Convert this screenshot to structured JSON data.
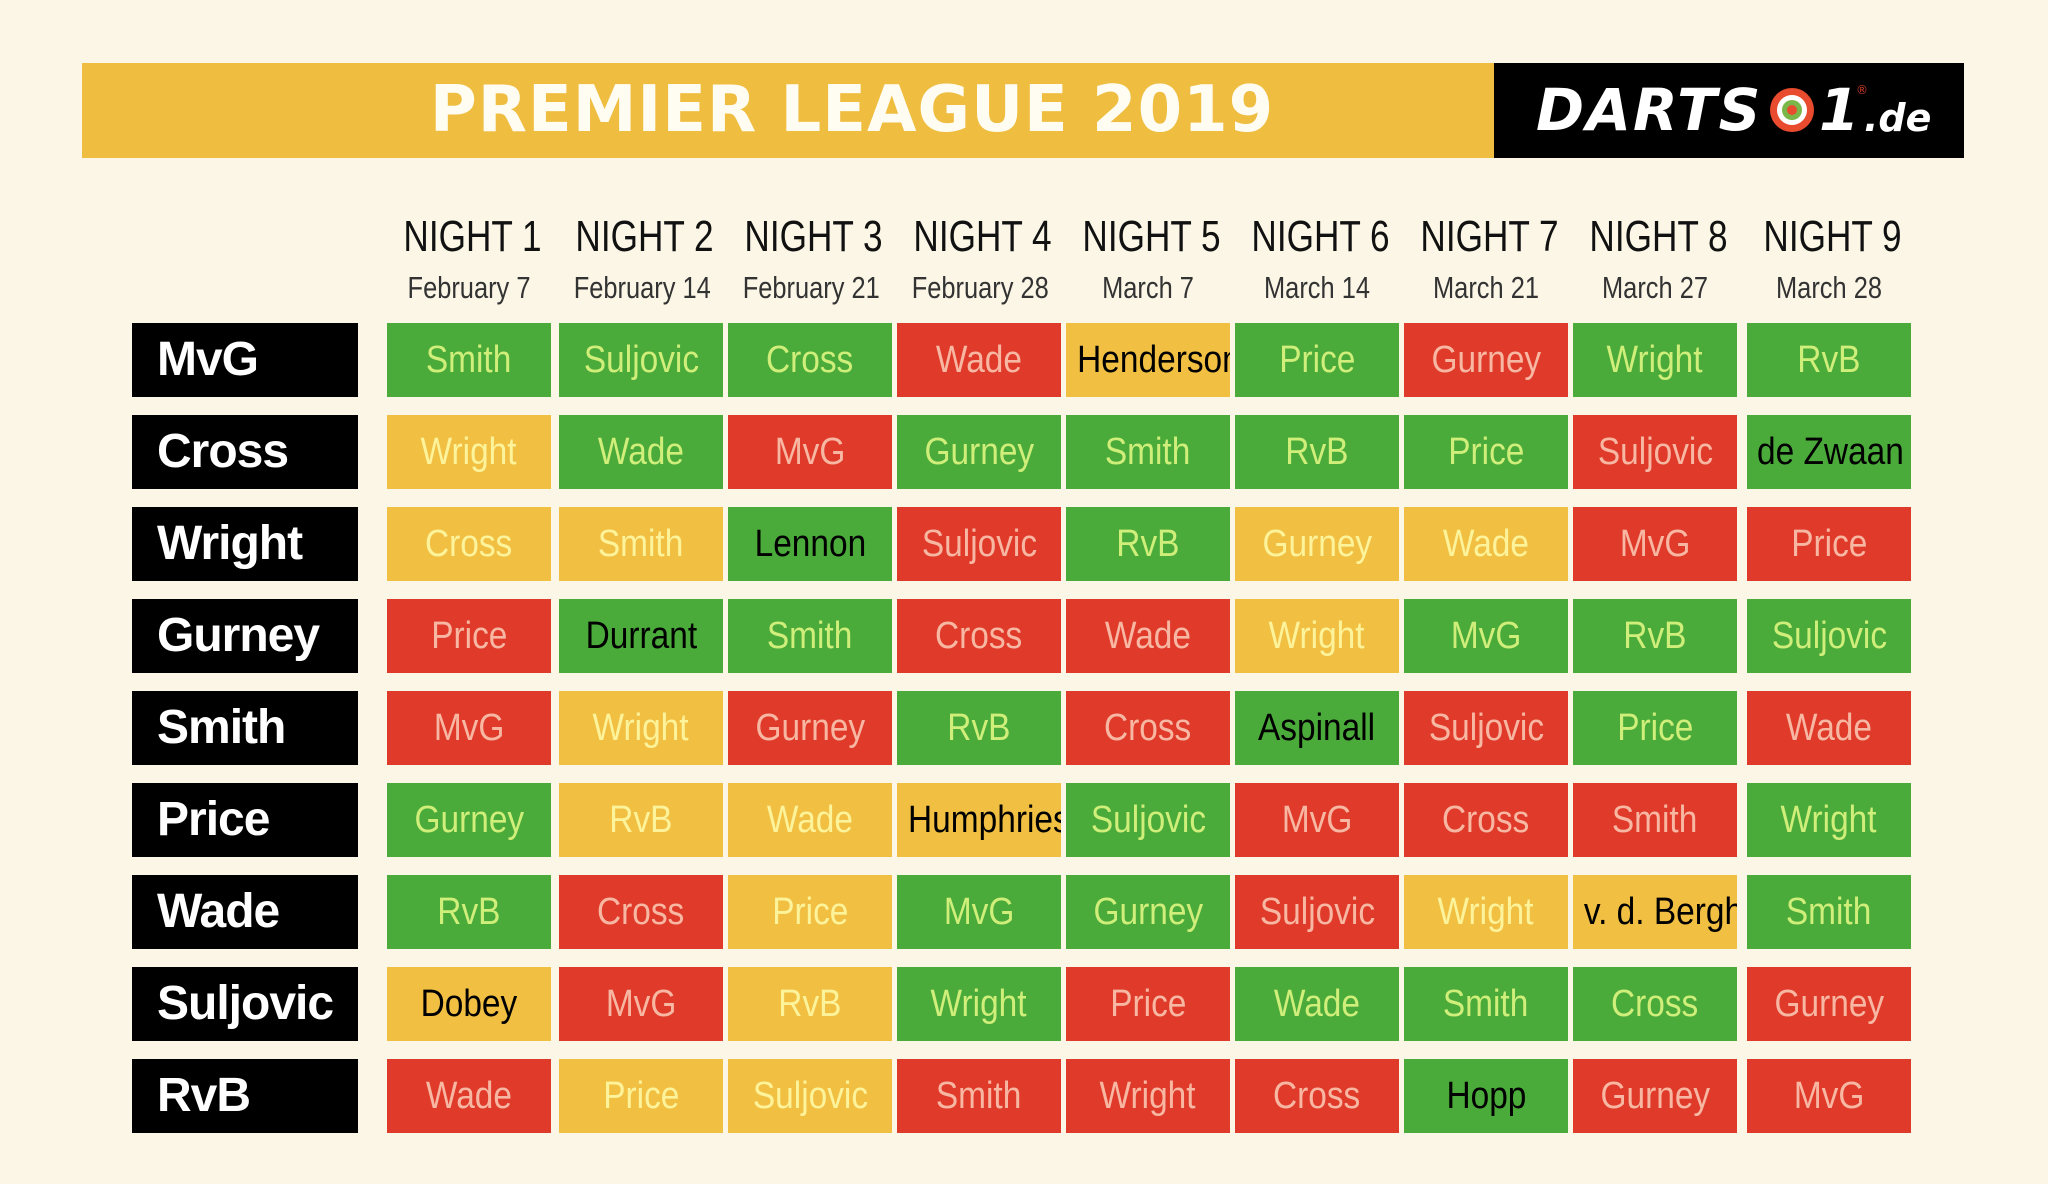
{
  "title": "PREMIER LEAGUE 2019",
  "logo": {
    "text": "DARTS",
    "one": "1",
    "tld": ".de",
    "reg": "®"
  },
  "colors": {
    "background": "#fbf6e6",
    "banner": "#efbd40",
    "green": "#4aaa3a",
    "yellow": "#f1bf42",
    "red": "#df3a2a",
    "player_bg": "#000000"
  },
  "nights": [
    {
      "label": "NIGHT 1",
      "date": "February 7"
    },
    {
      "label": "NIGHT 2",
      "date": "February 14"
    },
    {
      "label": "NIGHT 3",
      "date": "February 21"
    },
    {
      "label": "NIGHT 4",
      "date": "February 28"
    },
    {
      "label": "NIGHT 5",
      "date": "March 7"
    },
    {
      "label": "NIGHT 6",
      "date": "March 14"
    },
    {
      "label": "NIGHT 7",
      "date": "March 21"
    },
    {
      "label": "NIGHT 8",
      "date": "March 27"
    },
    {
      "label": "NIGHT 9",
      "date": "March 28"
    }
  ],
  "rows": [
    {
      "player": "MvG",
      "matches": [
        {
          "opponent": "Smith",
          "color": "green"
        },
        {
          "opponent": "Suljovic",
          "color": "green"
        },
        {
          "opponent": "Cross",
          "color": "green"
        },
        {
          "opponent": "Wade",
          "color": "red"
        },
        {
          "opponent": "Henderson",
          "color": "yellow",
          "dark_text": true
        },
        {
          "opponent": "Price",
          "color": "green"
        },
        {
          "opponent": "Gurney",
          "color": "red"
        },
        {
          "opponent": "Wright",
          "color": "green"
        },
        {
          "opponent": "RvB",
          "color": "green"
        }
      ]
    },
    {
      "player": "Cross",
      "matches": [
        {
          "opponent": "Wright",
          "color": "yellow"
        },
        {
          "opponent": "Wade",
          "color": "green"
        },
        {
          "opponent": "MvG",
          "color": "red"
        },
        {
          "opponent": "Gurney",
          "color": "green"
        },
        {
          "opponent": "Smith",
          "color": "green"
        },
        {
          "opponent": "RvB",
          "color": "green"
        },
        {
          "opponent": "Price",
          "color": "green"
        },
        {
          "opponent": "Suljovic",
          "color": "red"
        },
        {
          "opponent": "de Zwaan",
          "color": "green",
          "dark_text": true
        }
      ]
    },
    {
      "player": "Wright",
      "matches": [
        {
          "opponent": "Cross",
          "color": "yellow"
        },
        {
          "opponent": "Smith",
          "color": "yellow"
        },
        {
          "opponent": "Lennon",
          "color": "green",
          "dark_text": true
        },
        {
          "opponent": "Suljovic",
          "color": "red"
        },
        {
          "opponent": "RvB",
          "color": "green"
        },
        {
          "opponent": "Gurney",
          "color": "yellow"
        },
        {
          "opponent": "Wade",
          "color": "yellow"
        },
        {
          "opponent": "MvG",
          "color": "red"
        },
        {
          "opponent": "Price",
          "color": "red"
        }
      ]
    },
    {
      "player": "Gurney",
      "matches": [
        {
          "opponent": "Price",
          "color": "red"
        },
        {
          "opponent": "Durrant",
          "color": "green",
          "dark_text": true
        },
        {
          "opponent": "Smith",
          "color": "green"
        },
        {
          "opponent": "Cross",
          "color": "red"
        },
        {
          "opponent": "Wade",
          "color": "red"
        },
        {
          "opponent": "Wright",
          "color": "yellow"
        },
        {
          "opponent": "MvG",
          "color": "green"
        },
        {
          "opponent": "RvB",
          "color": "green"
        },
        {
          "opponent": "Suljovic",
          "color": "green"
        }
      ]
    },
    {
      "player": "Smith",
      "matches": [
        {
          "opponent": "MvG",
          "color": "red"
        },
        {
          "opponent": "Wright",
          "color": "yellow"
        },
        {
          "opponent": "Gurney",
          "color": "red"
        },
        {
          "opponent": "RvB",
          "color": "green"
        },
        {
          "opponent": "Cross",
          "color": "red"
        },
        {
          "opponent": "Aspinall",
          "color": "green",
          "dark_text": true
        },
        {
          "opponent": "Suljovic",
          "color": "red"
        },
        {
          "opponent": "Price",
          "color": "green"
        },
        {
          "opponent": "Wade",
          "color": "red"
        }
      ]
    },
    {
      "player": "Price",
      "matches": [
        {
          "opponent": "Gurney",
          "color": "green"
        },
        {
          "opponent": "RvB",
          "color": "yellow"
        },
        {
          "opponent": "Wade",
          "color": "yellow"
        },
        {
          "opponent": "Humphries",
          "color": "yellow",
          "dark_text": true
        },
        {
          "opponent": "Suljovic",
          "color": "green"
        },
        {
          "opponent": "MvG",
          "color": "red"
        },
        {
          "opponent": "Cross",
          "color": "red"
        },
        {
          "opponent": "Smith",
          "color": "red"
        },
        {
          "opponent": "Wright",
          "color": "green"
        }
      ]
    },
    {
      "player": "Wade",
      "matches": [
        {
          "opponent": "RvB",
          "color": "green"
        },
        {
          "opponent": "Cross",
          "color": "red"
        },
        {
          "opponent": "Price",
          "color": "yellow"
        },
        {
          "opponent": "MvG",
          "color": "green"
        },
        {
          "opponent": "Gurney",
          "color": "green"
        },
        {
          "opponent": "Suljovic",
          "color": "red"
        },
        {
          "opponent": "Wright",
          "color": "yellow"
        },
        {
          "opponent": "v. d. Bergh",
          "color": "yellow",
          "dark_text": true
        },
        {
          "opponent": "Smith",
          "color": "green"
        }
      ]
    },
    {
      "player": "Suljovic",
      "matches": [
        {
          "opponent": "Dobey",
          "color": "yellow",
          "dark_text": true
        },
        {
          "opponent": "MvG",
          "color": "red"
        },
        {
          "opponent": "RvB",
          "color": "yellow"
        },
        {
          "opponent": "Wright",
          "color": "green"
        },
        {
          "opponent": "Price",
          "color": "red"
        },
        {
          "opponent": "Wade",
          "color": "green"
        },
        {
          "opponent": "Smith",
          "color": "green"
        },
        {
          "opponent": "Cross",
          "color": "green"
        },
        {
          "opponent": "Gurney",
          "color": "red"
        }
      ]
    },
    {
      "player": "RvB",
      "matches": [
        {
          "opponent": "Wade",
          "color": "red"
        },
        {
          "opponent": "Price",
          "color": "yellow"
        },
        {
          "opponent": "Suljovic",
          "color": "yellow"
        },
        {
          "opponent": "Smith",
          "color": "red"
        },
        {
          "opponent": "Wright",
          "color": "red"
        },
        {
          "opponent": "Cross",
          "color": "red"
        },
        {
          "opponent": "Hopp",
          "color": "green",
          "dark_text": true
        },
        {
          "opponent": "Gurney",
          "color": "red"
        },
        {
          "opponent": "MvG",
          "color": "red"
        }
      ]
    }
  ]
}
